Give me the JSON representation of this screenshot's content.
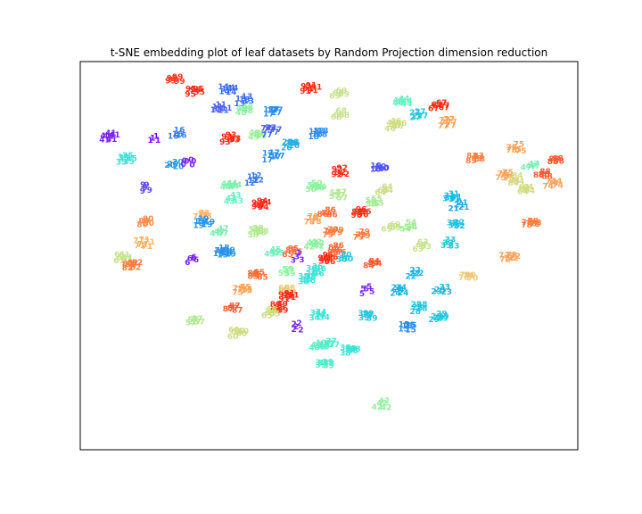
{
  "figure": {
    "title": "t-SNE embedding plot of leaf datasets by Random Projection dimension reduction"
  },
  "chart_data": {
    "type": "scatter",
    "title": "t-SNE embedding plot of leaf datasets by Random Projection dimension reduction",
    "xlabel": "",
    "ylabel": "",
    "ticks": "none",
    "grid": false,
    "legend": "none",
    "xlim": [
      0,
      1
    ],
    "ylim": [
      0,
      1
    ],
    "colormap": "rainbow",
    "marker": "class label text",
    "class_range": [
      1,
      99
    ],
    "clusters": [
      {
        "label": "99",
        "x": 0.188,
        "y": 0.948,
        "color": "#ff3b1f"
      },
      {
        "label": "95",
        "x": 0.23,
        "y": 0.918,
        "color": "#ff2a15"
      },
      {
        "label": "14",
        "x": 0.295,
        "y": 0.922,
        "color": "#3a6cf4"
      },
      {
        "label": "13",
        "x": 0.328,
        "y": 0.895,
        "color": "#3a6cf4"
      },
      {
        "label": "91",
        "x": 0.46,
        "y": 0.925,
        "color": "#ff2a15"
      },
      {
        "label": "69",
        "x": 0.52,
        "y": 0.91,
        "color": "#c6e38a"
      },
      {
        "label": "44",
        "x": 0.645,
        "y": 0.89,
        "color": "#60f4c2"
      },
      {
        "label": "67",
        "x": 0.72,
        "y": 0.88,
        "color": "#ff2a15"
      },
      {
        "label": "77",
        "x": 0.735,
        "y": 0.835,
        "color": "#ffa256"
      },
      {
        "label": "11",
        "x": 0.28,
        "y": 0.875,
        "color": "#4a5ff8"
      },
      {
        "label": "48",
        "x": 0.33,
        "y": 0.87,
        "color": "#8cf2a0"
      },
      {
        "label": "17",
        "x": 0.385,
        "y": 0.865,
        "color": "#2c8cf0"
      },
      {
        "label": "68",
        "x": 0.52,
        "y": 0.86,
        "color": "#c6e38a"
      },
      {
        "label": "27",
        "x": 0.68,
        "y": 0.855,
        "color": "#20c6e0"
      },
      {
        "label": "46",
        "x": 0.63,
        "y": 0.83,
        "color": "#d0dc80"
      },
      {
        "label": "16",
        "x": 0.195,
        "y": 0.81,
        "color": "#2f7df2"
      },
      {
        "label": "93",
        "x": 0.3,
        "y": 0.795,
        "color": "#ff2a15"
      },
      {
        "label": "49",
        "x": 0.355,
        "y": 0.805,
        "color": "#9cf098"
      },
      {
        "label": "77",
        "x": 0.38,
        "y": 0.815,
        "color": "#4a5ff8"
      },
      {
        "label": "18",
        "x": 0.475,
        "y": 0.81,
        "color": "#2c8cf0"
      },
      {
        "label": "26",
        "x": 0.42,
        "y": 0.78,
        "color": "#23b0e8"
      },
      {
        "label": "41",
        "x": 0.055,
        "y": 0.8,
        "color": "#7a22f5"
      },
      {
        "label": "1",
        "x": 0.148,
        "y": 0.795,
        "color": "#8000ff"
      },
      {
        "label": "35",
        "x": 0.09,
        "y": 0.742,
        "color": "#3ee2d8"
      },
      {
        "label": "20",
        "x": 0.188,
        "y": 0.73,
        "color": "#2596ec"
      },
      {
        "label": "0",
        "x": 0.215,
        "y": 0.735,
        "color": "#7a22f5"
      },
      {
        "label": "17",
        "x": 0.385,
        "y": 0.75,
        "color": "#2c8cf0"
      },
      {
        "label": "92",
        "x": 0.52,
        "y": 0.71,
        "color": "#ff2a15"
      },
      {
        "label": "10",
        "x": 0.6,
        "y": 0.72,
        "color": "#5152fa"
      },
      {
        "label": "75",
        "x": 0.875,
        "y": 0.77,
        "color": "#ffa256"
      },
      {
        "label": "83",
        "x": 0.795,
        "y": 0.745,
        "color": "#ff7a3e"
      },
      {
        "label": "88",
        "x": 0.955,
        "y": 0.74,
        "color": "#ff5a2e"
      },
      {
        "label": "47",
        "x": 0.905,
        "y": 0.725,
        "color": "#76f0b0"
      },
      {
        "label": "75",
        "x": 0.855,
        "y": 0.7,
        "color": "#ffa256"
      },
      {
        "label": "84",
        "x": 0.875,
        "y": 0.69,
        "color": "#d0dc80"
      },
      {
        "label": "88",
        "x": 0.93,
        "y": 0.705,
        "color": "#ff5a2e"
      },
      {
        "label": "74",
        "x": 0.95,
        "y": 0.68,
        "color": "#ffa256"
      },
      {
        "label": "64",
        "x": 0.895,
        "y": 0.665,
        "color": "#d0dc80"
      },
      {
        "label": "9",
        "x": 0.13,
        "y": 0.67,
        "color": "#5a46fb"
      },
      {
        "label": "12",
        "x": 0.35,
        "y": 0.69,
        "color": "#3e76f6"
      },
      {
        "label": "44",
        "x": 0.3,
        "y": 0.675,
        "color": "#7ef1ac"
      },
      {
        "label": "50",
        "x": 0.47,
        "y": 0.67,
        "color": "#8ef29e"
      },
      {
        "label": "57",
        "x": 0.52,
        "y": 0.65,
        "color": "#b0e890"
      },
      {
        "label": "55",
        "x": 0.59,
        "y": 0.63,
        "color": "#a4ec94"
      },
      {
        "label": "43",
        "x": 0.305,
        "y": 0.64,
        "color": "#60f4c2"
      },
      {
        "label": "94",
        "x": 0.36,
        "y": 0.625,
        "color": "#ff2a15"
      },
      {
        "label": "64",
        "x": 0.61,
        "y": 0.665,
        "color": "#d0dc80"
      },
      {
        "label": "31",
        "x": 0.745,
        "y": 0.645,
        "color": "#17bce5"
      },
      {
        "label": "21",
        "x": 0.76,
        "y": 0.625,
        "color": "#1aa8e8"
      },
      {
        "label": "80",
        "x": 0.13,
        "y": 0.58,
        "color": "#ff8a4a"
      },
      {
        "label": "73",
        "x": 0.245,
        "y": 0.6,
        "color": "#ffb060"
      },
      {
        "label": "19",
        "x": 0.245,
        "y": 0.58,
        "color": "#2596ec"
      },
      {
        "label": "78",
        "x": 0.465,
        "y": 0.59,
        "color": "#ffa256"
      },
      {
        "label": "86",
        "x": 0.495,
        "y": 0.605,
        "color": "#ff6a36"
      },
      {
        "label": "96",
        "x": 0.56,
        "y": 0.605,
        "color": "#ff2a15"
      },
      {
        "label": "69",
        "x": 0.625,
        "y": 0.57,
        "color": "#c6e38a"
      },
      {
        "label": "54",
        "x": 0.66,
        "y": 0.57,
        "color": "#a0ec94"
      },
      {
        "label": "32",
        "x": 0.755,
        "y": 0.575,
        "color": "#1cc0e4"
      },
      {
        "label": "78",
        "x": 0.905,
        "y": 0.578,
        "color": "#ff7a3e"
      },
      {
        "label": "71",
        "x": 0.125,
        "y": 0.525,
        "color": "#ffb060"
      },
      {
        "label": "61",
        "x": 0.085,
        "y": 0.49,
        "color": "#c6e38a"
      },
      {
        "label": "82",
        "x": 0.1,
        "y": 0.47,
        "color": "#ff7a3e"
      },
      {
        "label": "47",
        "x": 0.28,
        "y": 0.555,
        "color": "#76f0b0"
      },
      {
        "label": "58",
        "x": 0.355,
        "y": 0.555,
        "color": "#b0e890"
      },
      {
        "label": "18",
        "x": 0.285,
        "y": 0.505,
        "color": "#2c8cf0"
      },
      {
        "label": "45",
        "x": 0.39,
        "y": 0.505,
        "color": "#6cf2ba"
      },
      {
        "label": "85",
        "x": 0.425,
        "y": 0.505,
        "color": "#ff6a36"
      },
      {
        "label": "79",
        "x": 0.505,
        "y": 0.555,
        "color": "#ff7a3e"
      },
      {
        "label": "79",
        "x": 0.565,
        "y": 0.55,
        "color": "#ff7a3e"
      },
      {
        "label": "42",
        "x": 0.47,
        "y": 0.52,
        "color": "#8ef29e"
      },
      {
        "label": "3",
        "x": 0.435,
        "y": 0.49,
        "color": "#7a22f5"
      },
      {
        "label": "96",
        "x": 0.495,
        "y": 0.485,
        "color": "#ff2a15"
      },
      {
        "label": "86",
        "x": 0.515,
        "y": 0.51,
        "color": "#ff6a36"
      },
      {
        "label": "30",
        "x": 0.53,
        "y": 0.49,
        "color": "#20c6e0"
      },
      {
        "label": "63",
        "x": 0.685,
        "y": 0.52,
        "color": "#c6e38a"
      },
      {
        "label": "33",
        "x": 0.74,
        "y": 0.525,
        "color": "#22c8dc"
      },
      {
        "label": "72",
        "x": 0.86,
        "y": 0.49,
        "color": "#ffa256"
      },
      {
        "label": "6",
        "x": 0.225,
        "y": 0.485,
        "color": "#7a22f5"
      },
      {
        "label": "19",
        "x": 0.295,
        "y": 0.5,
        "color": "#2596ec"
      },
      {
        "label": "84",
        "x": 0.588,
        "y": 0.475,
        "color": "#ff5a2e"
      },
      {
        "label": "59",
        "x": 0.415,
        "y": 0.455,
        "color": "#8ef29e"
      },
      {
        "label": "36",
        "x": 0.47,
        "y": 0.455,
        "color": "#3ee2d8"
      },
      {
        "label": "38",
        "x": 0.455,
        "y": 0.435,
        "color": "#3ee2d8"
      },
      {
        "label": "85",
        "x": 0.355,
        "y": 0.445,
        "color": "#ff6a36"
      },
      {
        "label": "22",
        "x": 0.67,
        "y": 0.45,
        "color": "#16b4e6"
      },
      {
        "label": "70",
        "x": 0.78,
        "y": 0.44,
        "color": "#f0c878"
      },
      {
        "label": "68",
        "x": 0.415,
        "y": 0.405,
        "color": "#f0c878"
      },
      {
        "label": "75",
        "x": 0.325,
        "y": 0.405,
        "color": "#ffa256"
      },
      {
        "label": "91",
        "x": 0.415,
        "y": 0.39,
        "color": "#ff2a15"
      },
      {
        "label": "5",
        "x": 0.575,
        "y": 0.405,
        "color": "#7a22f5"
      },
      {
        "label": "24",
        "x": 0.64,
        "y": 0.405,
        "color": "#16b4e6"
      },
      {
        "label": "23",
        "x": 0.725,
        "y": 0.405,
        "color": "#16b4e6"
      },
      {
        "label": "87",
        "x": 0.305,
        "y": 0.36,
        "color": "#ff5a2e"
      },
      {
        "label": "89",
        "x": 0.4,
        "y": 0.36,
        "color": "#ff2a15"
      },
      {
        "label": "65",
        "x": 0.38,
        "y": 0.345,
        "color": "#d0dc80"
      },
      {
        "label": "28",
        "x": 0.68,
        "y": 0.36,
        "color": "#20c6e0"
      },
      {
        "label": "34",
        "x": 0.48,
        "y": 0.34,
        "color": "#3ee2d8"
      },
      {
        "label": "39",
        "x": 0.575,
        "y": 0.34,
        "color": "#20c6e0"
      },
      {
        "label": "29",
        "x": 0.72,
        "y": 0.335,
        "color": "#20c6e0"
      },
      {
        "label": "57",
        "x": 0.23,
        "y": 0.325,
        "color": "#b0e890"
      },
      {
        "label": "2",
        "x": 0.435,
        "y": 0.31,
        "color": "#7a22f5"
      },
      {
        "label": "15",
        "x": 0.655,
        "y": 0.31,
        "color": "#2c8cf0"
      },
      {
        "label": "60",
        "x": 0.315,
        "y": 0.295,
        "color": "#d0dc80"
      },
      {
        "label": "40",
        "x": 0.48,
        "y": 0.26,
        "color": "#5ef0c6"
      },
      {
        "label": "37",
        "x": 0.5,
        "y": 0.27,
        "color": "#50eccc"
      },
      {
        "label": "38",
        "x": 0.54,
        "y": 0.25,
        "color": "#3ee2d8"
      },
      {
        "label": "39",
        "x": 0.49,
        "y": 0.215,
        "color": "#50eccc"
      },
      {
        "label": "42",
        "x": 0.605,
        "y": 0.11,
        "color": "#8ef29e"
      }
    ]
  }
}
